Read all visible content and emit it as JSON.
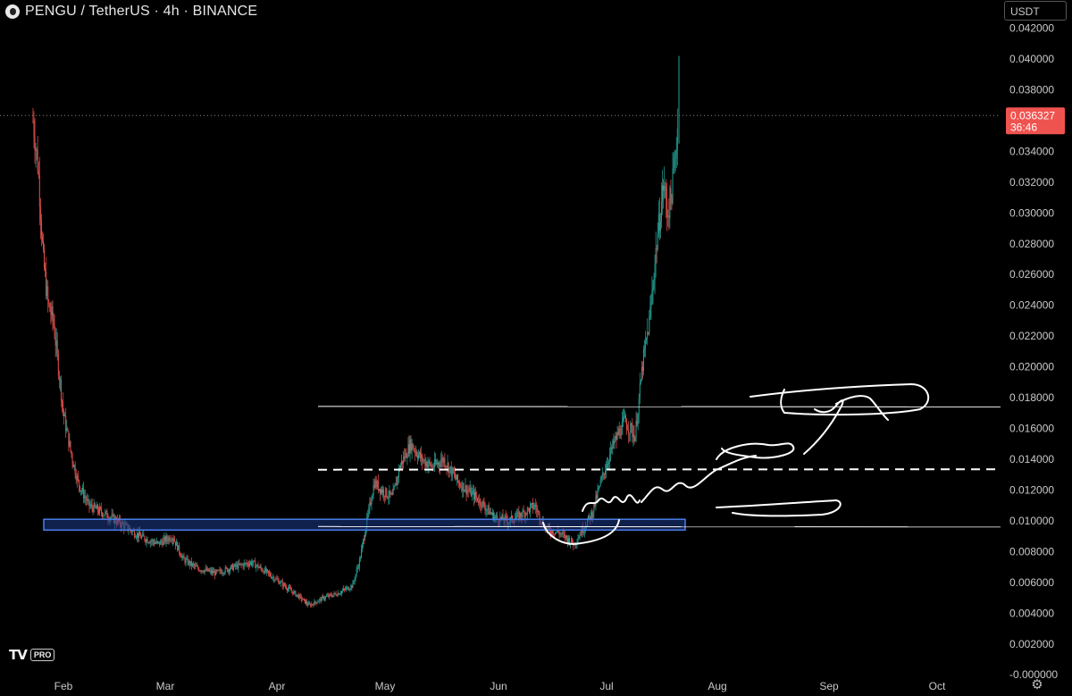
{
  "header": {
    "title": "PENGU / TetherUS · 4h · BINANCE",
    "symbol_icon": "pengu-coin-icon"
  },
  "toolbar": {
    "currency": "USDT"
  },
  "branding": {
    "logo_text": "TV",
    "badge": "PRO"
  },
  "price_label": {
    "price": "0.036327",
    "countdown": "36:46",
    "color": "#ef5350"
  },
  "colors": {
    "background": "#000000",
    "up": "#26a69a",
    "down": "#ef5350",
    "zone_fill": "#1e3a8a",
    "zone_border": "#4a7de8",
    "annotation": "#ffffff"
  },
  "chart_data": {
    "type": "candlestick",
    "title": "PENGU / TetherUS · 4h · BINANCE",
    "y_ticks": [
      "0.042000",
      "0.040000",
      "0.038000",
      "0.036000",
      "0.034000",
      "0.032000",
      "0.030000",
      "0.028000",
      "0.026000",
      "0.024000",
      "0.022000",
      "0.020000",
      "0.018000",
      "0.016000",
      "0.014000",
      "0.012000",
      "0.010000",
      "0.008000",
      "0.006000",
      "0.004000",
      "0.002000",
      "-0.000000"
    ],
    "x_ticks": [
      "Feb",
      "Mar",
      "Apr",
      "May",
      "Jun",
      "Jul",
      "Aug",
      "Sep",
      "Oct"
    ],
    "ylim": [
      -0.0008,
      0.0436
    ],
    "price_path": [
      [
        "Jan 20",
        0.036
      ],
      [
        "Jan 22",
        0.033
      ],
      [
        "Jan 24",
        0.027
      ],
      [
        "Jan 26",
        0.024
      ],
      [
        "Jan 28",
        0.023
      ],
      [
        "Jan 30",
        0.02
      ],
      [
        "Feb 1",
        0.017
      ],
      [
        "Feb 3",
        0.0145
      ],
      [
        "Feb 5",
        0.0125
      ],
      [
        "Feb 8",
        0.011
      ],
      [
        "Feb 12",
        0.0105
      ],
      [
        "Feb 17",
        0.0098
      ],
      [
        "Feb 22",
        0.009
      ],
      [
        "Feb 27",
        0.0085
      ],
      [
        "Mar 3",
        0.009
      ],
      [
        "Mar 6",
        0.0075
      ],
      [
        "Mar 10",
        0.0069
      ],
      [
        "Mar 15",
        0.0066
      ],
      [
        "Mar 20",
        0.007
      ],
      [
        "Mar 25",
        0.0073
      ],
      [
        "Mar 30",
        0.0065
      ],
      [
        "Apr 3",
        0.0058
      ],
      [
        "Apr 7",
        0.0051
      ],
      [
        "Apr 10",
        0.0045
      ],
      [
        "Apr 14",
        0.005
      ],
      [
        "Apr 18",
        0.0053
      ],
      [
        "Apr 22",
        0.0058
      ],
      [
        "Apr 24",
        0.0075
      ],
      [
        "Apr 26",
        0.01
      ],
      [
        "Apr 28",
        0.0125
      ],
      [
        "Apr 30",
        0.012
      ],
      [
        "May 3",
        0.0115
      ],
      [
        "May 5",
        0.0135
      ],
      [
        "May 8",
        0.015
      ],
      [
        "May 11",
        0.014
      ],
      [
        "May 14",
        0.0135
      ],
      [
        "May 17",
        0.014
      ],
      [
        "May 21",
        0.0125
      ],
      [
        "May 26",
        0.0115
      ],
      [
        "May 31",
        0.0102
      ],
      [
        "Jun 4",
        0.01
      ],
      [
        "Jun 8",
        0.0105
      ],
      [
        "Jun 11",
        0.011
      ],
      [
        "Jun 14",
        0.0095
      ],
      [
        "Jun 18",
        0.0092
      ],
      [
        "Jun 22",
        0.0085
      ],
      [
        "Jun 24",
        0.0093
      ],
      [
        "Jun 27",
        0.0105
      ],
      [
        "Jun 30",
        0.013
      ],
      [
        "Jul 3",
        0.015
      ],
      [
        "Jul 6",
        0.0165
      ],
      [
        "Jul 9",
        0.0155
      ],
      [
        "Jul 11",
        0.02
      ],
      [
        "Jul 13",
        0.023
      ],
      [
        "Jul 15",
        0.028
      ],
      [
        "Jul 17",
        0.032
      ],
      [
        "Jul 18",
        0.03
      ],
      [
        "Jul 19",
        0.031
      ],
      [
        "Jul 20",
        0.033
      ],
      [
        "Jul 21",
        0.0363
      ]
    ],
    "annotations": {
      "support_zone": [
        0.0094,
        0.0101
      ],
      "horizontal_lines": [
        0.0174,
        0.0096
      ],
      "dashed_line": 0.01335
    }
  }
}
